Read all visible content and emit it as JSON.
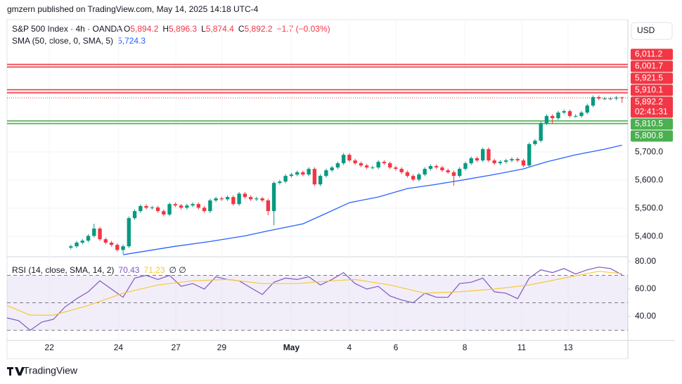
{
  "header": {
    "byline": "gmzern published on TradingView.com, May 14, 2025 14:18 UTC-4",
    "currency": "USD",
    "brand": "TradingView"
  },
  "chart_data": {
    "type": "candlestick",
    "symbol": "S&P 500 Index · 4h · OANDA",
    "ohlc_legend": [
      {
        "key": "O",
        "value": "5,894.2"
      },
      {
        "key": "H",
        "value": "5,896.3"
      },
      {
        "key": "L",
        "value": "5,874.4"
      },
      {
        "key": "C",
        "value": "5,892.2"
      }
    ],
    "change": "−1.7 (−0.03%)",
    "up_color": "#089981",
    "down_color": "#f23645",
    "open": [
      5360,
      5365,
      5378,
      5385,
      5402,
      5428,
      5390,
      5378,
      5370,
      5352,
      5365,
      5465,
      5490,
      5508,
      5502,
      5503,
      5490,
      5478,
      5515,
      5510,
      5502,
      5510,
      5515,
      5502,
      5490,
      5528,
      5535,
      5532,
      5540,
      5515,
      5552,
      5540,
      5532,
      5535,
      5528,
      5490,
      5590,
      5595,
      5615,
      5620,
      5628,
      5620,
      5640,
      5585,
      5615,
      5635,
      5645,
      5660,
      5690,
      5670,
      5660,
      5652,
      5645,
      5645,
      5665,
      5660,
      5645,
      5640,
      5628,
      5615,
      5602,
      5620,
      5640,
      5650,
      5645,
      5635,
      5628,
      5615,
      5640,
      5660,
      5678,
      5670,
      5710,
      5670,
      5660,
      5665,
      5670,
      5675,
      5670,
      5652,
      5728,
      5740,
      5802,
      5828,
      5820,
      5840,
      5845,
      5828,
      5828,
      5840,
      5865,
      5895,
      5890,
      5890,
      5890,
      5894.2
    ],
    "high": [
      5371,
      5384,
      5391,
      5408,
      5445,
      5434,
      5396,
      5384,
      5376,
      5371,
      5471,
      5496,
      5514,
      5514,
      5509,
      5509,
      5496,
      5521,
      5521,
      5516,
      5516,
      5521,
      5521,
      5508,
      5534,
      5541,
      5541,
      5546,
      5546,
      5558,
      5558,
      5546,
      5541,
      5541,
      5534,
      5596,
      5601,
      5621,
      5626,
      5634,
      5634,
      5646,
      5646,
      5621,
      5641,
      5651,
      5666,
      5696,
      5696,
      5676,
      5666,
      5658,
      5651,
      5671,
      5671,
      5666,
      5651,
      5646,
      5634,
      5621,
      5626,
      5646,
      5656,
      5656,
      5651,
      5641,
      5634,
      5646,
      5666,
      5684,
      5684,
      5716,
      5716,
      5676,
      5671,
      5676,
      5681,
      5681,
      5676,
      5734,
      5746,
      5808,
      5834,
      5834,
      5846,
      5851,
      5851,
      5834,
      5846,
      5871,
      5901,
      5901,
      5896,
      5896,
      5899,
      5896.3
    ],
    "low": [
      5354,
      5359,
      5372,
      5379,
      5396,
      5384,
      5372,
      5364,
      5346,
      5338,
      5359,
      5459,
      5484,
      5496,
      5496,
      5484,
      5472,
      5472,
      5504,
      5496,
      5496,
      5504,
      5496,
      5484,
      5484,
      5522,
      5526,
      5526,
      5509,
      5509,
      5534,
      5526,
      5526,
      5522,
      5475,
      5440,
      5584,
      5589,
      5609,
      5614,
      5614,
      5614,
      5579,
      5579,
      5609,
      5629,
      5639,
      5654,
      5664,
      5654,
      5646,
      5639,
      5639,
      5639,
      5654,
      5639,
      5634,
      5622,
      5609,
      5596,
      5596,
      5614,
      5634,
      5639,
      5629,
      5622,
      5580,
      5609,
      5634,
      5654,
      5664,
      5664,
      5664,
      5654,
      5654,
      5659,
      5664,
      5664,
      5646,
      5646,
      5722,
      5734,
      5796,
      5800,
      5814,
      5834,
      5822,
      5822,
      5822,
      5834,
      5859,
      5884,
      5884,
      5884,
      5884,
      5874.4
    ],
    "close": [
      5365,
      5378,
      5385,
      5402,
      5428,
      5390,
      5378,
      5370,
      5352,
      5365,
      5465,
      5490,
      5508,
      5502,
      5503,
      5490,
      5478,
      5515,
      5510,
      5502,
      5510,
      5515,
      5502,
      5490,
      5528,
      5535,
      5532,
      5540,
      5515,
      5552,
      5540,
      5532,
      5535,
      5528,
      5490,
      5590,
      5595,
      5615,
      5620,
      5628,
      5620,
      5640,
      5585,
      5615,
      5635,
      5645,
      5660,
      5690,
      5670,
      5660,
      5652,
      5645,
      5645,
      5665,
      5660,
      5645,
      5640,
      5628,
      5615,
      5602,
      5620,
      5640,
      5650,
      5645,
      5635,
      5628,
      5615,
      5640,
      5660,
      5678,
      5670,
      5710,
      5670,
      5660,
      5665,
      5670,
      5675,
      5670,
      5652,
      5728,
      5740,
      5802,
      5828,
      5820,
      5840,
      5845,
      5828,
      5828,
      5840,
      5865,
      5895,
      5890,
      5890,
      5890,
      5893,
      5892.2
    ],
    "last_price_label": "5,892.2",
    "countdown": "02:41:31",
    "xlim": [
      -11,
      96
    ],
    "xticks": [
      {
        "value": -3.7,
        "label": "22"
      },
      {
        "value": 8.2,
        "label": "24"
      },
      {
        "value": 18.1,
        "label": "27"
      },
      {
        "value": 26,
        "label": "29"
      },
      {
        "value": 38,
        "label": "May"
      },
      {
        "value": 48,
        "label": "4"
      },
      {
        "value": 56,
        "label": "6"
      },
      {
        "value": 67.9,
        "label": "8"
      },
      {
        "value": 77.7,
        "label": "11"
      },
      {
        "value": 85.7,
        "label": "13"
      }
    ],
    "ylim": [
      5328,
      6170
    ],
    "yticks": [
      {
        "value": 5400,
        "label": "5,400.0"
      },
      {
        "value": 5500,
        "label": "5,500.0"
      },
      {
        "value": 5600,
        "label": "5,600.0"
      },
      {
        "value": 5700,
        "label": "5,700.0"
      }
    ],
    "levels": [
      {
        "value": 6011.2,
        "label": "6,011.2",
        "color": "#f23645"
      },
      {
        "value": 6001.7,
        "label": "6,001.7",
        "color": "#f23645"
      },
      {
        "value": 5921.5,
        "label": "5,921.5",
        "color": "#f23645"
      },
      {
        "value": 5910.1,
        "label": "5,910.1",
        "color": "#f23645"
      },
      {
        "value": 5810.5,
        "label": "5,810.5",
        "color": "#4caf50"
      },
      {
        "value": 5800.8,
        "label": "5,800.8",
        "color": "#4caf50"
      }
    ],
    "overlays": [
      {
        "name": "SMA (50, close, 0, SMA, 5)",
        "value_label": "5,724.3",
        "color": "#2962ff",
        "x": [
          9,
          12,
          18,
          24,
          30,
          34,
          40,
          44,
          48,
          53,
          58,
          63,
          68,
          73,
          78,
          82,
          87,
          92,
          95
        ],
        "values": [
          5335,
          5345,
          5365,
          5382,
          5402,
          5420,
          5445,
          5482,
          5520,
          5540,
          5570,
          5585,
          5602,
          5620,
          5640,
          5665,
          5690,
          5710,
          5724.3
        ]
      }
    ],
    "rsi": {
      "title": "RSI (14, close, SMA, 14, 2)",
      "extra": "∅ ∅",
      "ylim": [
        22.6,
        83.6
      ],
      "yticks": [
        {
          "value": 40,
          "label": "40.00"
        },
        {
          "value": 60,
          "label": "60.00"
        },
        {
          "value": 80,
          "label": "80.00"
        }
      ],
      "bands": [
        30,
        50,
        70
      ],
      "series": [
        {
          "value_label": "70.43",
          "color": "#7e57c2",
          "x": [
            -11,
            -9,
            -7,
            -5,
            -3,
            -1,
            1,
            3,
            5,
            7,
            9,
            11,
            13,
            15,
            17,
            19,
            21,
            23,
            25,
            27,
            29,
            31,
            33,
            35,
            37,
            39,
            41,
            43,
            45,
            47,
            49,
            51,
            53,
            55,
            57,
            59,
            61,
            63,
            65,
            67,
            69,
            71,
            73,
            75,
            77,
            79,
            81,
            83,
            85,
            87,
            89,
            91,
            93,
            95
          ],
          "values": [
            39,
            37,
            30,
            36,
            38,
            47,
            53,
            58,
            66,
            60,
            54,
            68,
            70,
            67,
            70,
            62,
            64,
            60,
            69,
            67,
            66,
            61,
            56,
            65,
            68,
            67,
            69,
            63,
            67,
            72,
            64,
            60,
            62,
            55,
            52,
            50,
            57,
            54,
            54,
            64,
            65,
            68,
            58,
            57,
            53,
            68,
            74,
            72,
            75,
            71,
            74,
            76,
            75,
            70.43
          ]
        },
        {
          "value_label": "71.23",
          "color": "#f7c935",
          "x": [
            -11,
            -7,
            -3,
            3,
            9,
            15,
            21,
            27,
            33,
            39,
            45,
            49,
            55,
            61,
            67,
            73,
            79,
            85,
            91,
            95
          ],
          "values": [
            48,
            41,
            41,
            48,
            57,
            63,
            66,
            67,
            64,
            64,
            66,
            67,
            63,
            57,
            58,
            60,
            63,
            68,
            73,
            71.23
          ]
        }
      ]
    }
  }
}
